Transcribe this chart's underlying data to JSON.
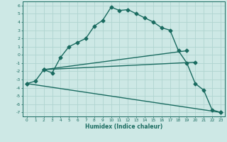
{
  "xlabel": "Humidex (Indice chaleur)",
  "bg_color": "#cde8e5",
  "line_color": "#1a6b60",
  "grid_color": "#b0d4d0",
  "xlim": [
    -0.5,
    23.5
  ],
  "ylim": [
    -7.5,
    6.5
  ],
  "xticks": [
    0,
    1,
    2,
    3,
    4,
    5,
    6,
    7,
    8,
    9,
    10,
    11,
    12,
    13,
    14,
    15,
    16,
    17,
    18,
    19,
    20,
    21,
    22,
    23
  ],
  "yticks": [
    -7,
    -6,
    -5,
    -4,
    -3,
    -2,
    -1,
    0,
    1,
    2,
    3,
    4,
    5,
    6
  ],
  "curve1_x": [
    0,
    1,
    2,
    3,
    4,
    5,
    6,
    7,
    8,
    9,
    10,
    11,
    12,
    13,
    14,
    15,
    16,
    17,
    18,
    19,
    20,
    21,
    22,
    23
  ],
  "curve1_y": [
    -3.5,
    -3.2,
    -1.8,
    -2.2,
    -0.3,
    1.0,
    1.5,
    2.0,
    3.5,
    4.2,
    5.8,
    5.4,
    5.5,
    5.0,
    4.5,
    4.0,
    3.3,
    3.0,
    0.5,
    -1.0,
    -3.5,
    -4.3,
    -6.7,
    -7.0
  ],
  "line2_x": [
    2,
    19
  ],
  "line2_y": [
    -1.8,
    0.5
  ],
  "line3_x": [
    2,
    20
  ],
  "line3_y": [
    -1.8,
    -0.9
  ],
  "line4_x": [
    0,
    23
  ],
  "line4_y": [
    -3.5,
    -7.0
  ],
  "marker": "D",
  "markersize": 2.5,
  "linewidth": 1.0
}
